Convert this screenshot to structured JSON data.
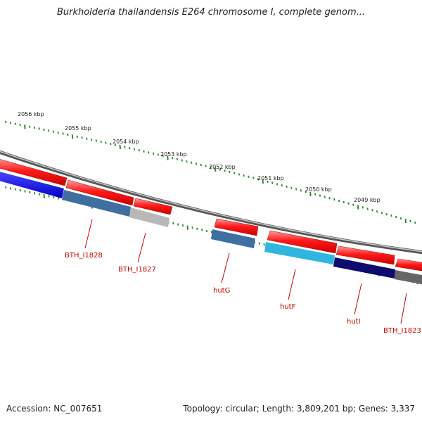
{
  "title": "Burkholderia thailandensis E264 chromosome I, complete genom...",
  "ruler": [
    "2056 kbp",
    "2055 kbp",
    "2054 kbp",
    "2053 kbp",
    "2052 kbp",
    "2051 kbp",
    "2050 kbp",
    "2049 kbp"
  ],
  "genes": [
    {
      "label": "BTH_I1828",
      "color": "#3f6fa0"
    },
    {
      "label": "BTH_I1827",
      "color": "#b8b8b8"
    },
    {
      "label": "hutG",
      "color": "#3f6fa0"
    },
    {
      "label": "hutF",
      "color": "#2fb6e0"
    },
    {
      "label": "hutI",
      "color": "#0c0c6e"
    },
    {
      "label": "BTH_I1823",
      "color": "#666666"
    }
  ],
  "footer": {
    "accession": "Accession: NC_007651",
    "topology": "Topology: circular; Length: 3,809,201 bp; Genes: 3,337"
  }
}
